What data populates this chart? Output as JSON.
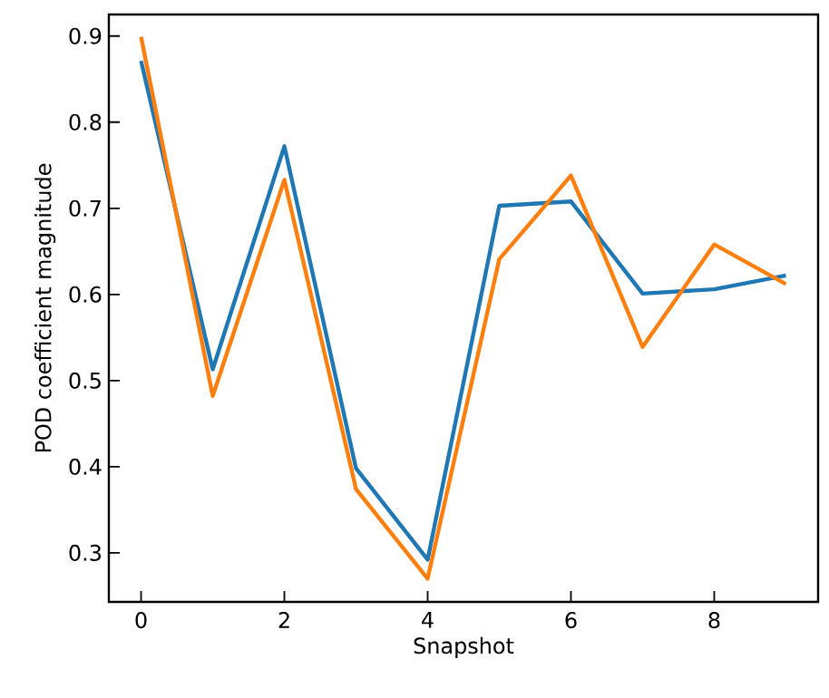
{
  "chart_data": {
    "type": "line",
    "xlabel": "Snapshot",
    "ylabel": "POD coefficient magnitude",
    "x": [
      0,
      1,
      2,
      3,
      4,
      5,
      6,
      7,
      8,
      9
    ],
    "series": [
      {
        "color": "#1f77b4",
        "values": [
          0.871,
          0.513,
          0.772,
          0.398,
          0.292,
          0.703,
          0.708,
          0.601,
          0.606,
          0.622
        ]
      },
      {
        "color": "#ff7f0e",
        "values": [
          0.899,
          0.482,
          0.733,
          0.374,
          0.27,
          0.641,
          0.738,
          0.539,
          0.658,
          0.612
        ]
      }
    ],
    "xlim": [
      -0.45,
      9.45
    ],
    "ylim": [
      0.243,
      0.925
    ],
    "xticks": [
      0,
      2,
      4,
      6,
      8
    ],
    "yticks": [
      0.3,
      0.4,
      0.5,
      0.6,
      0.7,
      0.8,
      0.9
    ],
    "marker": "none",
    "line_style": "solid"
  }
}
